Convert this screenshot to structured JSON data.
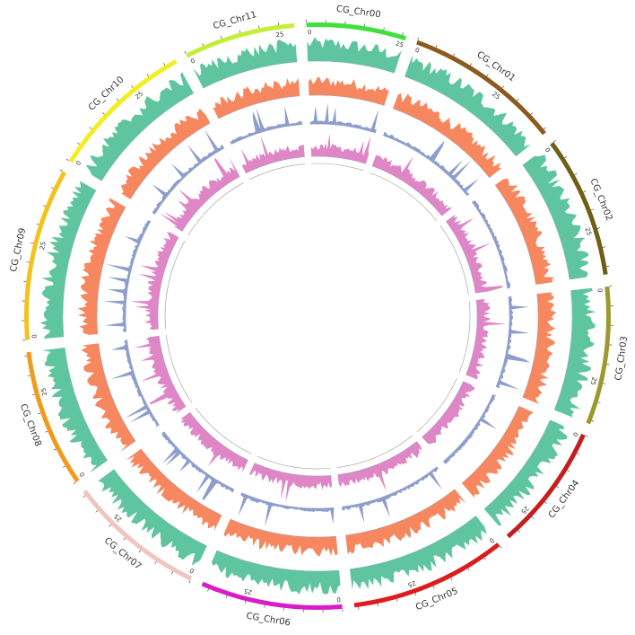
{
  "genome": {
    "chromosomes": [
      {
        "id": "chr00",
        "label": "CG_Chr00",
        "length": 26,
        "color": "#3ee03a"
      },
      {
        "id": "chr01",
        "label": "CG_Chr01",
        "length": 41,
        "color": "#8c5a1c"
      },
      {
        "id": "chr02",
        "label": "CG_Chr02",
        "length": 37,
        "color": "#6e5f15"
      },
      {
        "id": "chr03",
        "label": "CG_Chr03",
        "length": 36,
        "color": "#9a9a2c"
      },
      {
        "id": "chr04",
        "label": "CG_Chr04",
        "length": 33,
        "color": "#c41e1e"
      },
      {
        "id": "chr05",
        "label": "CG_Chr05",
        "length": 41,
        "color": "#dd1d1d"
      },
      {
        "id": "chr06",
        "label": "CG_Chr06",
        "length": 37,
        "color": "#d81cc8"
      },
      {
        "id": "chr07",
        "label": "CG_Chr07",
        "length": 36,
        "color": "#f2c4c0"
      },
      {
        "id": "chr08",
        "label": "CG_Chr08",
        "length": 36,
        "color": "#f39a1e"
      },
      {
        "id": "chr09",
        "label": "CG_Chr09",
        "length": 45,
        "color": "#f4c21e"
      },
      {
        "id": "chr10",
        "label": "CG_Chr10",
        "length": 38,
        "color": "#f1ee21"
      },
      {
        "id": "chr11",
        "label": "CG_Chr11",
        "length": 29,
        "color": "#c4ee3a"
      }
    ],
    "tick_labels": [
      "0",
      "25"
    ]
  },
  "tracks": [
    {
      "id": "track1",
      "color": "#5fc5a0"
    },
    {
      "id": "track2",
      "color": "#f7875f"
    },
    {
      "id": "track3",
      "color": "#8d9dcc"
    },
    {
      "id": "track4",
      "color": "#df86c6"
    }
  ]
}
